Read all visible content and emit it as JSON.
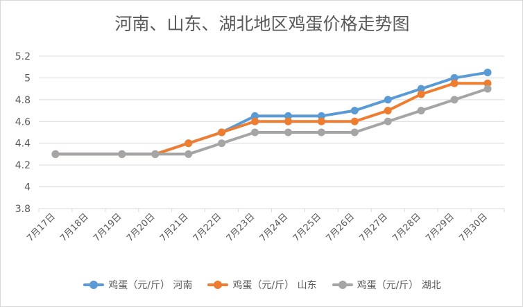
{
  "chart_data": {
    "type": "line",
    "title": "河南、山东、湖北地区鸡蛋价格走势图",
    "xlabel": "",
    "ylabel": "",
    "categories": [
      "7月17日",
      "7月18日",
      "7月19日",
      "7月20日",
      "7月21日",
      "7月22日",
      "7月23日",
      "7月24日",
      "7月25日",
      "7月26日",
      "7月27日",
      "7月28日",
      "7月29日",
      "7月30日"
    ],
    "series": [
      {
        "name": "鸡蛋（元/斤） 河南",
        "color": "#5B9BD5",
        "values": [
          4.3,
          null,
          4.3,
          4.3,
          4.4,
          4.5,
          4.65,
          4.65,
          4.65,
          4.7,
          4.8,
          4.9,
          5.0,
          5.05
        ]
      },
      {
        "name": "鸡蛋（元/斤） 山东",
        "color": "#ED7D31",
        "values": [
          4.3,
          null,
          4.3,
          4.3,
          4.4,
          4.5,
          4.6,
          4.6,
          4.6,
          4.6,
          4.7,
          4.85,
          4.95,
          4.95
        ]
      },
      {
        "name": "鸡蛋（元/斤） 湖北",
        "color": "#A5A5A5",
        "values": [
          4.3,
          null,
          4.3,
          4.3,
          4.3,
          4.4,
          4.5,
          4.5,
          4.5,
          4.5,
          4.6,
          4.7,
          4.8,
          4.9
        ]
      }
    ],
    "ylim": [
      3.8,
      5.2
    ],
    "yticks": [
      "3.8",
      "4",
      "4.2",
      "4.4",
      "4.6",
      "4.8",
      "5",
      "5.2"
    ],
    "grid": true,
    "legend_position": "bottom"
  }
}
